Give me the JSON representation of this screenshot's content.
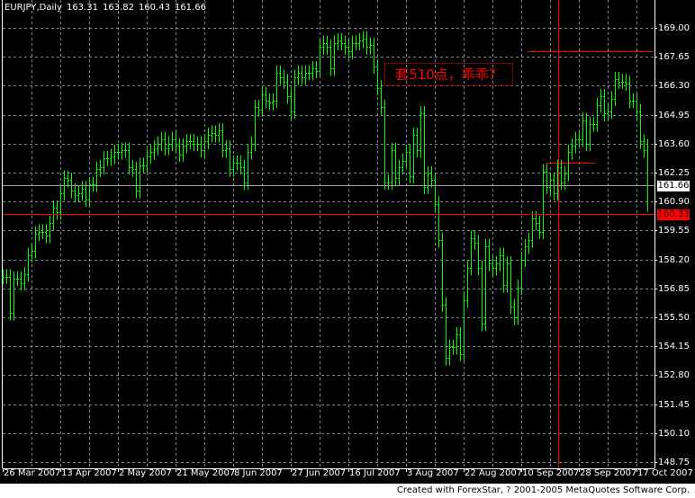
{
  "header": {
    "symbol": "EURJPY,Daily",
    "open": "163.31",
    "high": "163.82",
    "low": "160.43",
    "close": "161.66"
  },
  "annotation": {
    "text": "套510点，乖乖？",
    "color": "#ff0000"
  },
  "footer": {
    "text": "Created with ForexStar, ? 2001-2005 MetaQuotes Software Corp."
  },
  "colors": {
    "background": "#000000",
    "bars": "#00ff00",
    "grid": "#778899",
    "bid_line": "#9aa0a6",
    "level_line": "#ff0000"
  },
  "chart_data": {
    "type": "ohlc",
    "title": "EURJPY,Daily",
    "ylim": [
      148.75,
      169.0
    ],
    "grid": true,
    "y_ticks": [
      "169.00",
      "167.65",
      "166.30",
      "164.95",
      "163.60",
      "162.25",
      "160.90",
      "159.55",
      "158.20",
      "156.85",
      "155.50",
      "154.15",
      "152.80",
      "151.45",
      "150.10",
      "148.75"
    ],
    "x_ticks": [
      "26 Mar 2007",
      "13 Apr 2007",
      "2 May 2007",
      "21 May 2007",
      "8 Jun 2007",
      "27 Jun 2007",
      "16 Jul 2007",
      "3 Aug 2007",
      "22 Aug 2007",
      "10 Sep 2007",
      "28 Sep 2007",
      "17 Oct 2007"
    ],
    "last_bar": {
      "open": 163.31,
      "high": 163.82,
      "low": 160.43,
      "close": 161.66
    },
    "close": [
      157.4,
      157.4,
      155.7,
      157.3,
      157.3,
      157.1,
      157.5,
      158.4,
      158.6,
      159.4,
      159.5,
      159.5,
      159.3,
      159.9,
      160.6,
      160.4,
      161.3,
      162.0,
      161.9,
      161.4,
      161.2,
      161.3,
      161.5,
      161.0,
      161.7,
      161.7,
      162.4,
      162.5,
      162.9,
      162.9,
      163.0,
      163.2,
      163.2,
      163.3,
      163.3,
      162.5,
      162.4,
      161.4,
      162.6,
      162.6,
      163.0,
      163.2,
      163.4,
      163.6,
      163.8,
      163.4,
      163.6,
      163.8,
      163.5,
      163.1,
      163.5,
      163.7,
      163.7,
      163.6,
      163.6,
      163.3,
      163.7,
      164.0,
      164.1,
      164.0,
      164.2,
      163.3,
      163.4,
      162.4,
      162.7,
      162.7,
      162.5,
      161.8,
      163.2,
      163.6,
      165.3,
      165.2,
      165.9,
      165.6,
      165.5,
      165.6,
      166.9,
      166.7,
      166.5,
      165.8,
      165.1,
      166.7,
      166.9,
      166.7,
      166.9,
      166.9,
      167.1,
      167.0,
      168.1,
      168.3,
      168.1,
      167.1,
      168.3,
      168.4,
      168.3,
      168.1,
      167.9,
      168.3,
      168.3,
      168.4,
      168.5,
      168.1,
      168.2,
      167.2,
      166.2,
      165.3,
      161.8,
      161.8,
      163.3,
      162.0,
      162.5,
      162.8,
      163.2,
      162.1,
      164.0,
      163.3,
      165.0,
      161.6,
      162.2,
      161.9,
      160.8,
      159.1,
      156.1,
      153.6,
      154.1,
      154.1,
      154.7,
      153.8,
      156.3,
      157.8,
      159.2,
      159.0,
      157.8,
      155.2,
      158.8,
      158.0,
      157.8,
      158.0,
      158.4,
      157.0,
      158.0,
      156.0,
      155.5,
      156.9,
      158.2,
      158.8,
      159.1,
      160.1,
      159.9,
      159.5,
      162.3,
      161.6,
      161.9,
      161.3,
      162.5,
      161.8,
      162.2,
      163.2,
      163.5,
      163.8,
      163.8,
      164.7,
      163.6,
      164.5,
      164.5,
      165.4,
      165.8,
      165.0,
      165.1,
      165.7,
      166.6,
      166.5,
      166.5,
      166.4,
      165.6,
      165.6,
      165.1,
      163.7,
      163.3,
      161.66
    ],
    "hlines": [
      {
        "price": "161.66",
        "color": "#9aa0a6",
        "label_bg": "#ffffff",
        "label_fg": "#000000"
      },
      {
        "price": "160.33",
        "color": "#ff0000",
        "label_bg": "#ff0000",
        "label_fg": "#330000"
      }
    ],
    "level_segments": [
      {
        "price": 167.9,
        "color": "#ff0000"
      },
      {
        "price": 162.7,
        "color": "#ff0000"
      }
    ],
    "vline_date": "12 Sep 2007"
  }
}
